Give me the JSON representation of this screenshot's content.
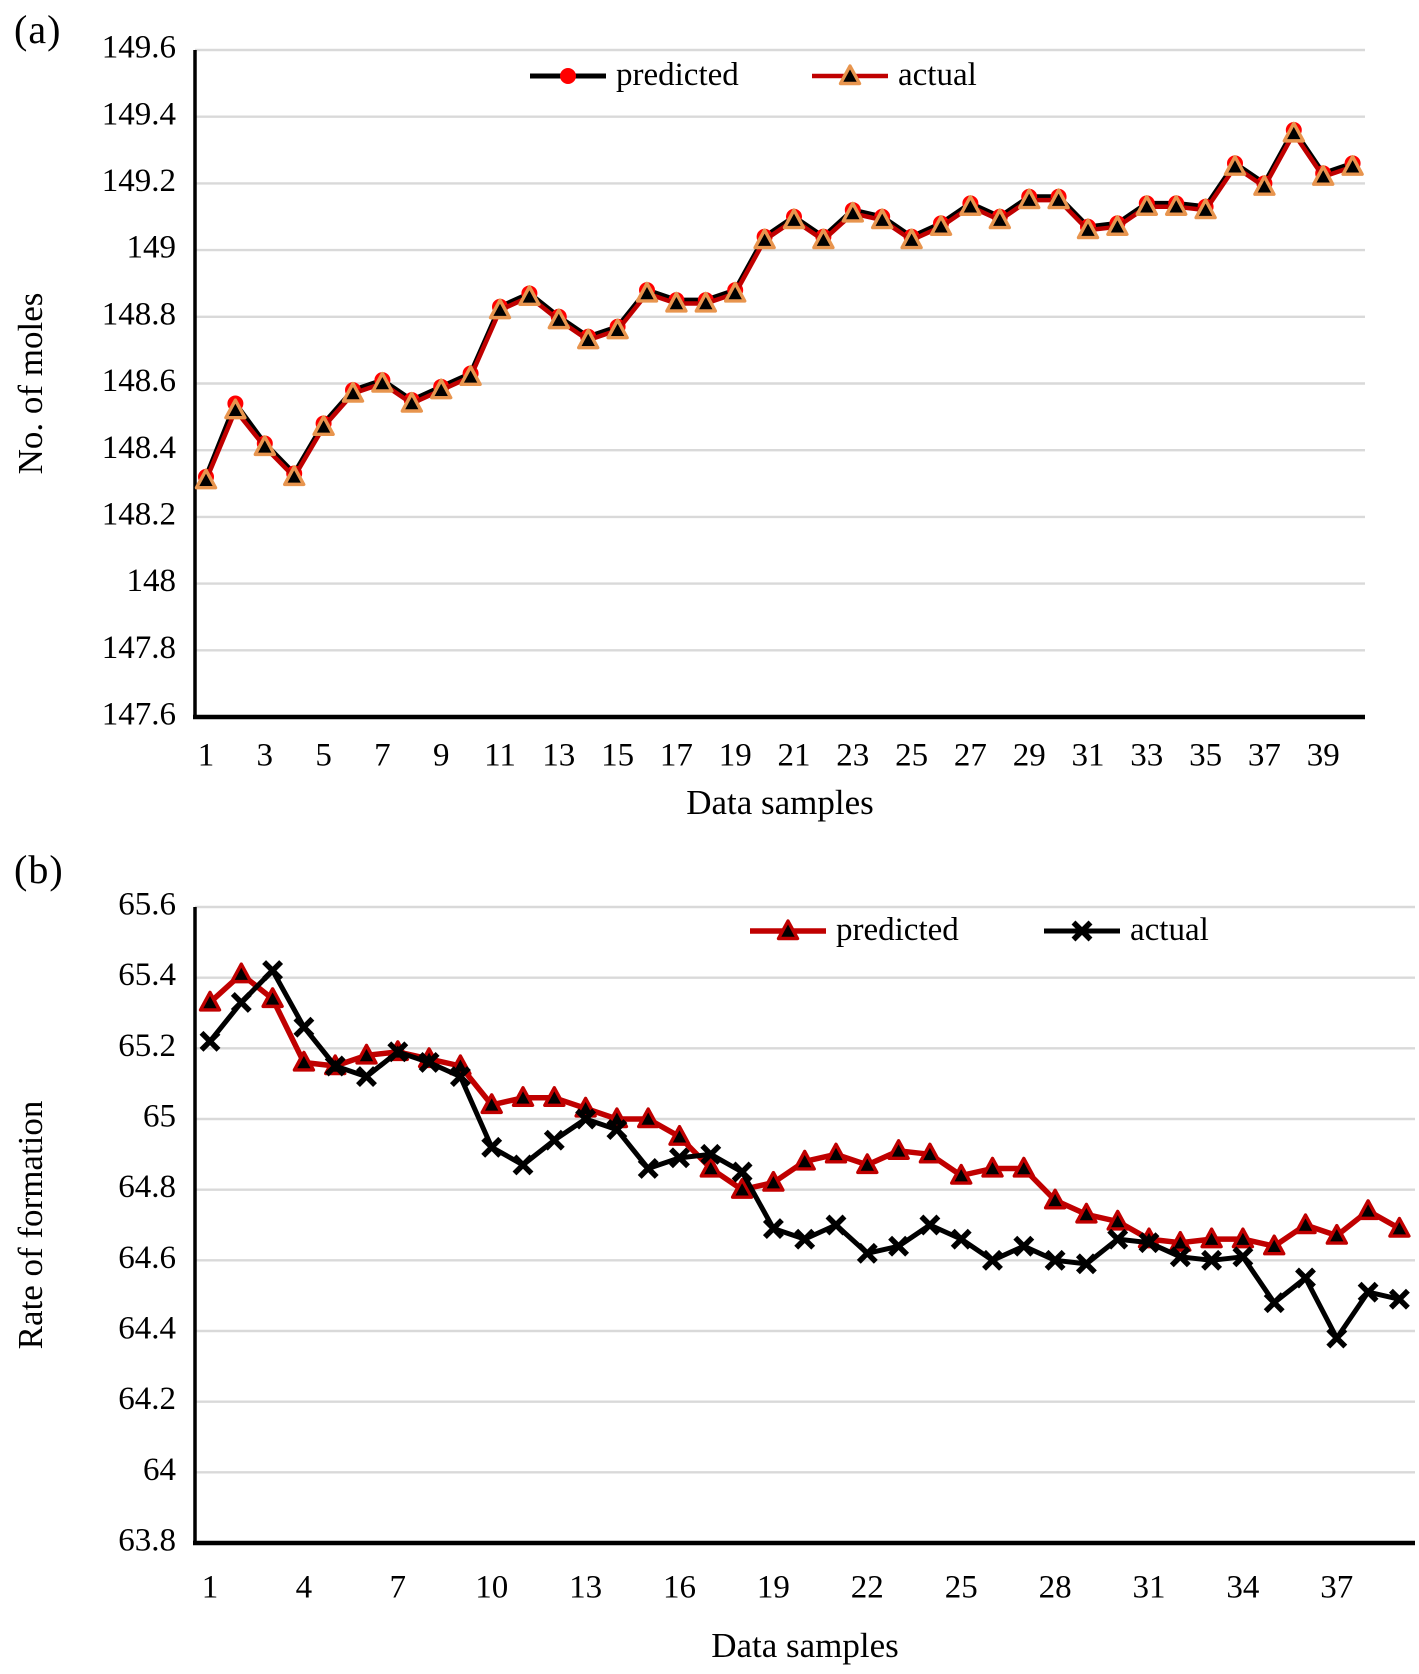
{
  "figure": {
    "background": "#ffffff",
    "grid_color": "#d9d9d9",
    "axis_color": "#000000",
    "text_color": "#000000"
  },
  "chart_data": [
    {
      "id": "a",
      "type": "line",
      "panel_label": "(a)",
      "xlabel": "Data samples",
      "ylabel": "No. of moles",
      "ylim": [
        147.6,
        149.6
      ],
      "grid": true,
      "legend_position": "top-center-inside",
      "yticks": [
        {
          "value": 149.6,
          "label": "149.6"
        },
        {
          "value": 149.4,
          "label": "149.4"
        },
        {
          "value": 149.2,
          "label": "149.2"
        },
        {
          "value": 149.0,
          "label": "149"
        },
        {
          "value": 148.8,
          "label": "148.8"
        },
        {
          "value": 148.6,
          "label": "148.6"
        },
        {
          "value": 148.4,
          "label": "148.4"
        },
        {
          "value": 148.2,
          "label": "148.2"
        },
        {
          "value": 148.0,
          "label": "148"
        },
        {
          "value": 147.8,
          "label": "147.8"
        },
        {
          "value": 147.6,
          "label": "147.6"
        }
      ],
      "xticks": [
        {
          "value": 1,
          "label": "1"
        },
        {
          "value": 3,
          "label": "3"
        },
        {
          "value": 5,
          "label": "5"
        },
        {
          "value": 7,
          "label": "7"
        },
        {
          "value": 9,
          "label": "9"
        },
        {
          "value": 11,
          "label": "11"
        },
        {
          "value": 13,
          "label": "13"
        },
        {
          "value": 15,
          "label": "15"
        },
        {
          "value": 17,
          "label": "17"
        },
        {
          "value": 19,
          "label": "19"
        },
        {
          "value": 21,
          "label": "21"
        },
        {
          "value": 23,
          "label": "23"
        },
        {
          "value": 25,
          "label": "25"
        },
        {
          "value": 27,
          "label": "27"
        },
        {
          "value": 29,
          "label": "29"
        },
        {
          "value": 31,
          "label": "31"
        },
        {
          "value": 33,
          "label": "33"
        },
        {
          "value": 35,
          "label": "35"
        },
        {
          "value": 37,
          "label": "37"
        },
        {
          "value": 39,
          "label": "39"
        }
      ],
      "series": [
        {
          "name": "predicted",
          "line_color": "#000000",
          "line_width": 5,
          "marker": "circle",
          "marker_fill": "#ff0000",
          "marker_stroke": "#ff0000",
          "values": [
            148.32,
            148.54,
            148.42,
            148.33,
            148.48,
            148.58,
            148.61,
            148.55,
            148.59,
            148.63,
            148.83,
            148.87,
            148.8,
            148.74,
            148.77,
            148.88,
            148.85,
            148.85,
            148.88,
            149.04,
            149.1,
            149.04,
            149.12,
            149.1,
            149.04,
            149.08,
            149.14,
            149.1,
            149.16,
            149.16,
            149.07,
            149.08,
            149.14,
            149.14,
            149.13,
            149.26,
            149.2,
            149.36,
            149.23,
            149.26
          ]
        },
        {
          "name": "actual",
          "line_color": "#c00000",
          "line_width": 4.5,
          "marker": "triangle",
          "marker_fill": "#000000",
          "marker_stroke": "#e8954e",
          "values": [
            148.31,
            148.52,
            148.41,
            148.32,
            148.47,
            148.57,
            148.6,
            148.54,
            148.58,
            148.62,
            148.82,
            148.86,
            148.79,
            148.73,
            148.76,
            148.87,
            148.84,
            148.84,
            148.87,
            149.03,
            149.09,
            149.03,
            149.11,
            149.09,
            149.03,
            149.07,
            149.13,
            149.09,
            149.15,
            149.15,
            149.06,
            149.07,
            149.13,
            149.13,
            149.12,
            149.25,
            149.19,
            149.35,
            149.22,
            149.25
          ]
        }
      ]
    },
    {
      "id": "b",
      "type": "line",
      "panel_label": "(b)",
      "xlabel": "Data samples",
      "ylabel": "Rate of formation",
      "ylim": [
        63.8,
        65.6
      ],
      "grid": true,
      "legend_position": "top-right-inside",
      "yticks": [
        {
          "value": 65.6,
          "label": "65.6"
        },
        {
          "value": 65.4,
          "label": "65.4"
        },
        {
          "value": 65.2,
          "label": "65.2"
        },
        {
          "value": 65.0,
          "label": "65"
        },
        {
          "value": 64.8,
          "label": "64.8"
        },
        {
          "value": 64.6,
          "label": "64.6"
        },
        {
          "value": 64.4,
          "label": "64.4"
        },
        {
          "value": 64.2,
          "label": "64.2"
        },
        {
          "value": 64.0,
          "label": "64"
        },
        {
          "value": 63.8,
          "label": "63.8"
        }
      ],
      "xticks": [
        {
          "value": 1,
          "label": "1"
        },
        {
          "value": 4,
          "label": "4"
        },
        {
          "value": 7,
          "label": "7"
        },
        {
          "value": 10,
          "label": "10"
        },
        {
          "value": 13,
          "label": "13"
        },
        {
          "value": 16,
          "label": "16"
        },
        {
          "value": 19,
          "label": "19"
        },
        {
          "value": 22,
          "label": "22"
        },
        {
          "value": 25,
          "label": "25"
        },
        {
          "value": 28,
          "label": "28"
        },
        {
          "value": 31,
          "label": "31"
        },
        {
          "value": 34,
          "label": "34"
        },
        {
          "value": 37,
          "label": "37"
        }
      ],
      "series": [
        {
          "name": "predicted",
          "line_color": "#c00000",
          "line_width": 5.5,
          "marker": "triangle",
          "marker_fill": "#000000",
          "marker_stroke": "#c00000",
          "values": [
            65.33,
            65.41,
            65.34,
            65.16,
            65.15,
            65.18,
            65.19,
            65.17,
            65.15,
            65.04,
            65.06,
            65.06,
            65.03,
            65.0,
            65.0,
            64.95,
            64.86,
            64.8,
            64.82,
            64.88,
            64.9,
            64.87,
            64.91,
            64.9,
            64.84,
            64.86,
            64.86,
            64.77,
            64.73,
            64.71,
            64.66,
            64.65,
            64.66,
            64.66,
            64.64,
            64.7,
            64.67,
            64.74,
            64.69
          ]
        },
        {
          "name": "actual",
          "line_color": "#000000",
          "line_width": 5,
          "marker": "x",
          "marker_fill": "#000000",
          "marker_stroke": "#000000",
          "values": [
            65.22,
            65.33,
            65.42,
            65.26,
            65.15,
            65.12,
            65.19,
            65.16,
            65.12,
            64.92,
            64.87,
            64.94,
            65.0,
            64.97,
            64.86,
            64.89,
            64.9,
            64.85,
            64.69,
            64.66,
            64.7,
            64.62,
            64.64,
            64.7,
            64.66,
            64.6,
            64.64,
            64.6,
            64.59,
            64.66,
            64.65,
            64.61,
            64.6,
            64.61,
            64.48,
            64.55,
            64.38,
            64.51,
            64.49
          ]
        }
      ]
    }
  ]
}
